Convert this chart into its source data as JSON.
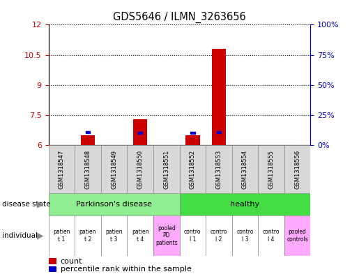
{
  "title": "GDS5646 / ILMN_3263656",
  "samples": [
    "GSM1318547",
    "GSM1318548",
    "GSM1318549",
    "GSM1318550",
    "GSM1318551",
    "GSM1318552",
    "GSM1318553",
    "GSM1318554",
    "GSM1318555",
    "GSM1318556"
  ],
  "red_values": [
    6.0,
    6.5,
    6.0,
    7.3,
    6.0,
    6.5,
    10.8,
    6.0,
    6.0,
    6.0
  ],
  "blue_values": [
    null,
    6.65,
    null,
    6.62,
    null,
    6.62,
    6.65,
    null,
    null,
    null
  ],
  "ylim_left": [
    6,
    12
  ],
  "ylim_right": [
    0,
    100
  ],
  "yticks_left": [
    6,
    7.5,
    9,
    10.5,
    12
  ],
  "yticks_right": [
    0,
    25,
    50,
    75,
    100
  ],
  "ytick_labels_left": [
    "6",
    "7.5",
    "9",
    "10.5",
    "12"
  ],
  "ytick_labels_right": [
    "0%",
    "25%",
    "50%",
    "75%",
    "100%"
  ],
  "individual_labels": [
    "patien\nt 1",
    "patien\nt 2",
    "patien\nt 3",
    "patien\nt 4",
    "pooled\nPD\npatients",
    "contro\nl 1",
    "contro\nl 2",
    "contro\nl 3",
    "contro\nl 4",
    "pooled\ncontrols"
  ],
  "individual_colors": [
    "#ffffff",
    "#ffffff",
    "#ffffff",
    "#ffffff",
    "#ffaaff",
    "#ffffff",
    "#ffffff",
    "#ffffff",
    "#ffffff",
    "#ffaaff"
  ],
  "bar_color": "#cc0000",
  "blue_color": "#0000cc",
  "bg_color": "#d8d8d8",
  "parkinson_color": "#90ee90",
  "healthy_color": "#44dd44",
  "left_axis_color": "#cc0000",
  "right_axis_color": "#0000cc"
}
